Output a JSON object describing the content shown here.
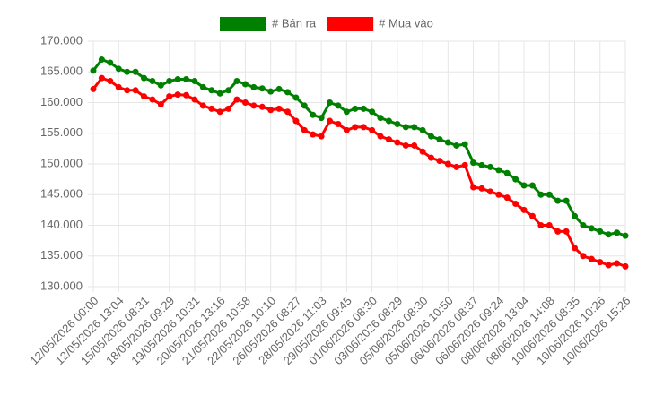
{
  "chart_data": {
    "type": "line",
    "categories": [
      "12/05/2026 00:00",
      null,
      null,
      "12/05/2026 13:04",
      null,
      null,
      "15/05/2026 08:31",
      null,
      null,
      "18/05/2026 09:29",
      null,
      null,
      "19/05/2026 10:31",
      null,
      null,
      "20/05/2026 13:16",
      null,
      null,
      "21/05/2026 10:58",
      null,
      null,
      "22/05/2026 10:10",
      null,
      null,
      "26/05/2026 08:27",
      null,
      null,
      "28/05/2026 11:03",
      null,
      null,
      "29/05/2026 09:45",
      null,
      null,
      "01/06/2026 08:30",
      null,
      null,
      "03/06/2026 08:29",
      null,
      null,
      "05/06/2026 08:30",
      null,
      null,
      "05/06/2026 10:50",
      null,
      null,
      "06/06/2026 08:37",
      null,
      null,
      "06/06/2026 09:24",
      null,
      null,
      "08/06/2026 13:04",
      null,
      null,
      "08/06/2026 14:08",
      null,
      null,
      "10/06/2026 08:35",
      null,
      null,
      "10/06/2026 10:26",
      null,
      null,
      "10/06/2026 15:26"
    ],
    "series": [
      {
        "name": "# Bán ra",
        "color": "#008000",
        "values": [
          165200,
          167000,
          166500,
          165500,
          165000,
          165000,
          164000,
          163500,
          162800,
          163500,
          163800,
          163800,
          163500,
          162500,
          162000,
          161500,
          162000,
          163500,
          163000,
          162500,
          162300,
          161800,
          162200,
          161700,
          160800,
          159500,
          158000,
          157500,
          160000,
          159500,
          158500,
          159000,
          159000,
          158500,
          157500,
          157000,
          156500,
          156000,
          156000,
          155500,
          154500,
          154000,
          153500,
          153000,
          153200,
          150200,
          149800,
          149500,
          149000,
          148500,
          147500,
          146500,
          146500,
          145000,
          145000,
          144000,
          144000,
          141500,
          140000,
          139500,
          139000,
          138500,
          138800,
          138300
        ]
      },
      {
        "name": "# Mua vào",
        "color": "#ff0000",
        "values": [
          162200,
          164000,
          163500,
          162500,
          162000,
          162000,
          161000,
          160500,
          159700,
          161000,
          161300,
          161200,
          160500,
          159500,
          159000,
          158500,
          159000,
          160500,
          160000,
          159500,
          159300,
          158800,
          159000,
          158500,
          157000,
          155500,
          154800,
          154500,
          157000,
          156500,
          155500,
          156000,
          156000,
          155500,
          154500,
          154000,
          153500,
          153000,
          153000,
          152000,
          151000,
          150500,
          150000,
          149500,
          149800,
          146200,
          146000,
          145500,
          145000,
          144500,
          143500,
          142500,
          141500,
          140000,
          140000,
          139000,
          139000,
          136300,
          135000,
          134500,
          134000,
          133500,
          133800,
          133300
        ]
      }
    ],
    "ylim": [
      130000,
      170000
    ],
    "yticks": [
      {
        "value": 130000,
        "label": "130.000"
      },
      {
        "value": 135000,
        "label": "135.000"
      },
      {
        "value": 140000,
        "label": "140.000"
      },
      {
        "value": 145000,
        "label": "145.000"
      },
      {
        "value": 150000,
        "label": "150.000"
      },
      {
        "value": 155000,
        "label": "155.000"
      },
      {
        "value": 160000,
        "label": "160.000"
      },
      {
        "value": 165000,
        "label": "165.000"
      },
      {
        "value": 170000,
        "label": "170.000"
      }
    ],
    "grid": true,
    "legend": "top"
  }
}
